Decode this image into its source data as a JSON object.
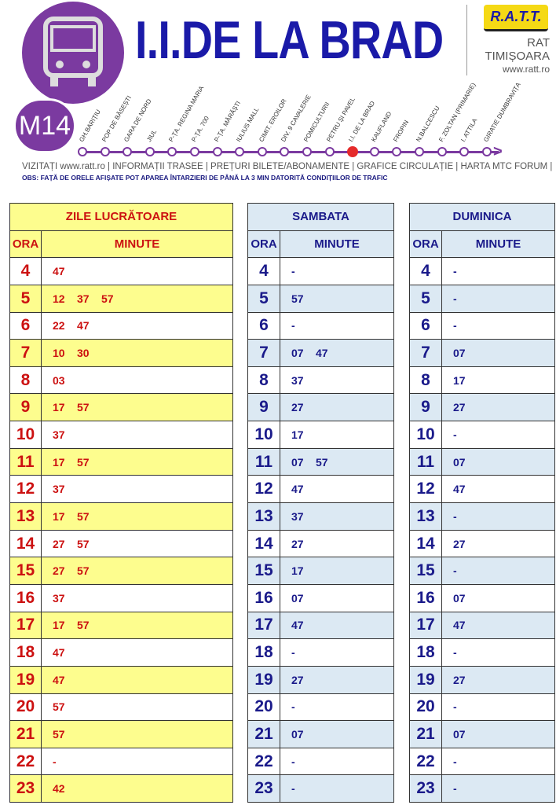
{
  "header": {
    "line": "M14",
    "title": "I.I.DE LA BRAD",
    "logo": "R.A.T.T.",
    "company1": "RAT",
    "company2": "TIMIȘOARA",
    "website": "www.ratt.ro"
  },
  "route": {
    "current_index": 13,
    "stops": [
      "GH.BARIȚIU",
      "POP DE BĂSEȘTI",
      "GARA DE NORD",
      "JIUL",
      "P-ȚA. REGINA MARIA",
      "P-ȚA. 700",
      "P-ȚA. MĂRĂȘTI",
      "IULIUS MALL",
      "CIMIT. EROILOR",
      "DIV. 9 CAVALERIE",
      "POMICULTURII",
      "PETRU ȘI PAVEL",
      "I.I. DE LA BRAD",
      "KAUFLAND",
      "FROPIN",
      "N.BALCESCU",
      "F. ZOLTAN (PRIMARIE)",
      "I. ATTILA",
      "GIRATIE DUMBRAVIȚA"
    ]
  },
  "links": "VIZITAȚI www.ratt.ro | INFORMAȚII TRASEE | PREȚURI BILETE/ABONAMENTE | GRAFICE CIRCULAȚIE | HARTA MTC   FORUM  |",
  "notice": "OBS: FAȚĂ DE ORELE AFIȘATE POT APAREA ÎNTARZIERI DE PÂNĂ LA 3 MIN DATORITĂ CONDIȚIILOR DE TRAFIC",
  "hours": [
    "4",
    "5",
    "6",
    "7",
    "8",
    "9",
    "10",
    "11",
    "12",
    "13",
    "14",
    "15",
    "16",
    "17",
    "18",
    "19",
    "20",
    "21",
    "22",
    "23"
  ],
  "tables": [
    {
      "title": "ZILE LUCRĂTOARE",
      "col_hour": "ORA",
      "col_min": "MINUTE",
      "minutes": [
        [
          "47"
        ],
        [
          "12",
          "37",
          "57"
        ],
        [
          "22",
          "47"
        ],
        [
          "10",
          "30"
        ],
        [
          "03"
        ],
        [
          "17",
          "57"
        ],
        [
          "37"
        ],
        [
          "17",
          "57"
        ],
        [
          "37"
        ],
        [
          "17",
          "57"
        ],
        [
          "27",
          "57"
        ],
        [
          "27",
          "57"
        ],
        [
          "37"
        ],
        [
          "17",
          "57"
        ],
        [
          "47"
        ],
        [
          "47"
        ],
        [
          "57"
        ],
        [
          "57"
        ],
        [
          "-"
        ],
        [
          "42"
        ]
      ]
    },
    {
      "title": "SAMBATA",
      "col_hour": "ORA",
      "col_min": "MINUTE",
      "minutes": [
        [
          "-"
        ],
        [
          "57"
        ],
        [
          "-"
        ],
        [
          "07",
          "47"
        ],
        [
          "37"
        ],
        [
          "27"
        ],
        [
          "17"
        ],
        [
          "07",
          "57"
        ],
        [
          "47"
        ],
        [
          "37"
        ],
        [
          "27"
        ],
        [
          "17"
        ],
        [
          "07"
        ],
        [
          "47"
        ],
        [
          "-"
        ],
        [
          "27"
        ],
        [
          "-"
        ],
        [
          "07"
        ],
        [
          "-"
        ],
        [
          "-"
        ]
      ]
    },
    {
      "title": "DUMINICA",
      "col_hour": "ORA",
      "col_min": "MINUTE",
      "minutes": [
        [
          "-"
        ],
        [
          "-"
        ],
        [
          "-"
        ],
        [
          "07"
        ],
        [
          "17"
        ],
        [
          "27"
        ],
        [
          "-"
        ],
        [
          "07"
        ],
        [
          "47"
        ],
        [
          "-"
        ],
        [
          "27"
        ],
        [
          "-"
        ],
        [
          "07"
        ],
        [
          "47"
        ],
        [
          "-"
        ],
        [
          "27"
        ],
        [
          "-"
        ],
        [
          "07"
        ],
        [
          "-"
        ],
        [
          "-"
        ]
      ]
    }
  ]
}
